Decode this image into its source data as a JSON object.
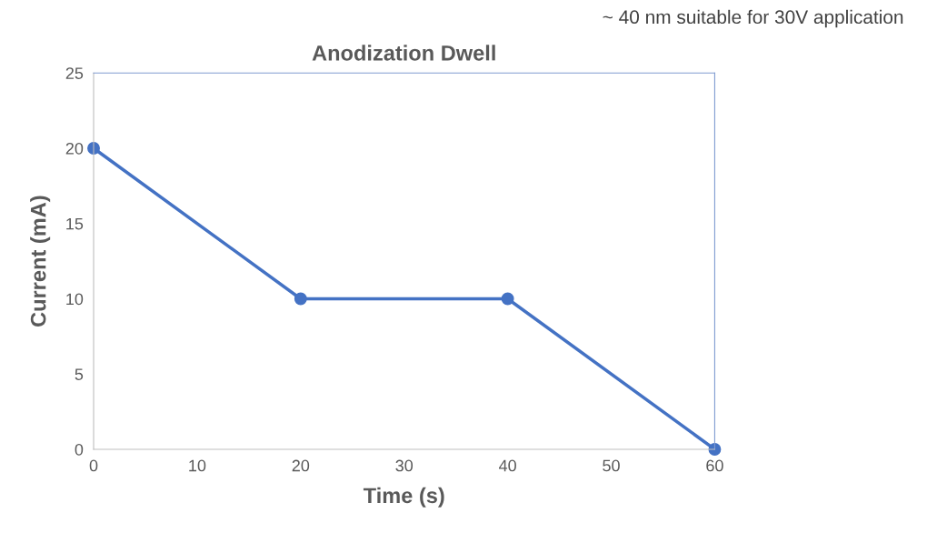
{
  "chart_data": {
    "type": "line",
    "title": "Anodization Dwell",
    "xlabel": "Time (s)",
    "ylabel": "Current (mA)",
    "annotations": [
      "~ 40 nm suitable for 30V application"
    ],
    "x": [
      0,
      20,
      40,
      60
    ],
    "series": [
      {
        "color": "#4472c4",
        "values": [
          20,
          10,
          10,
          0
        ]
      }
    ],
    "xlim": [
      0,
      60
    ],
    "xticks": [
      0,
      10,
      20,
      30,
      40,
      50,
      60
    ],
    "ylim": [
      0,
      25
    ],
    "yticks": [
      0,
      5,
      10,
      15,
      20,
      25
    ],
    "grid": false,
    "legend": false,
    "marker": "circle",
    "line_style": "solid"
  }
}
